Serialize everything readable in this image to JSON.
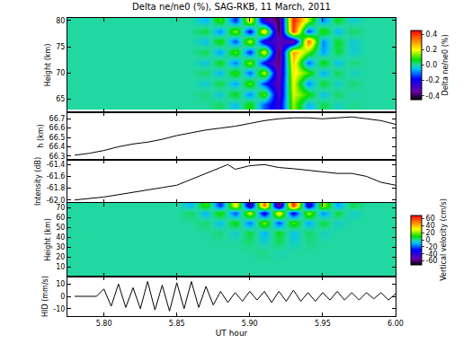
{
  "chart_data": [
    {
      "type": "heatmap",
      "title": "Delta ne/ne0 (%), SAG-RKB, 11 March, 2011",
      "y_label": "Height (km)",
      "x": [
        5.78,
        5.79,
        5.8,
        5.81,
        5.82,
        5.83,
        5.84,
        5.85,
        5.86,
        5.87,
        5.88,
        5.89,
        5.9,
        5.91,
        5.92,
        5.93,
        5.94,
        5.95,
        5.96,
        5.97,
        5.98,
        5.99,
        6.0
      ],
      "y": [
        64,
        66,
        68,
        70,
        72,
        74,
        76,
        78,
        80
      ],
      "cells": [
        [
          0,
          0,
          0,
          0,
          0,
          0,
          0,
          0,
          0,
          0,
          0.03,
          -0.05,
          0.08,
          -0.12,
          -0.25,
          0.15,
          -0.06,
          0.04,
          -0.02,
          0.01,
          0,
          0,
          0
        ],
        [
          0,
          0,
          0,
          0,
          0,
          0,
          0,
          0,
          0,
          0.02,
          -0.04,
          0.07,
          -0.1,
          0.12,
          -0.3,
          0.18,
          0.08,
          -0.05,
          0.03,
          -0.01,
          0,
          0,
          0
        ],
        [
          0,
          0,
          0,
          0,
          0,
          0,
          0,
          0,
          0,
          -0.03,
          0.05,
          -0.08,
          0.12,
          -0.15,
          -0.32,
          0.2,
          -0.1,
          0.06,
          -0.03,
          0.02,
          0,
          0,
          0
        ],
        [
          0,
          0,
          0,
          0,
          0,
          0,
          0,
          0,
          0,
          0.03,
          -0.06,
          0.1,
          -0.13,
          0.18,
          -0.35,
          0.22,
          0.1,
          -0.07,
          0.04,
          -0.02,
          0,
          0,
          0
        ],
        [
          0,
          0,
          0,
          0,
          0,
          0,
          0,
          0,
          0,
          -0.04,
          0.07,
          -0.11,
          0.15,
          -0.2,
          -0.38,
          0.25,
          -0.12,
          0.08,
          -0.05,
          0.02,
          0,
          0,
          0
        ],
        [
          0,
          0,
          0,
          0,
          0,
          0,
          0,
          0,
          0,
          0.04,
          -0.08,
          0.12,
          -0.17,
          0.22,
          -0.4,
          0.3,
          0.12,
          -0.08,
          0.05,
          -0.03,
          0,
          0,
          0
        ],
        [
          0,
          0,
          0,
          0,
          0,
          0,
          0,
          0,
          0,
          -0.05,
          0.09,
          -0.14,
          0.18,
          -0.25,
          -0.3,
          -0.35,
          0.35,
          -0.1,
          0.06,
          -0.03,
          0,
          0,
          0
        ],
        [
          0,
          0,
          0,
          0,
          0,
          0,
          0,
          0,
          0,
          0.05,
          -0.1,
          0.15,
          -0.2,
          0.26,
          -0.42,
          0.4,
          -0.15,
          0.1,
          -0.06,
          0.03,
          0,
          0,
          0
        ],
        [
          0,
          0,
          0,
          0,
          0,
          0,
          0,
          0,
          0,
          -0.06,
          0.1,
          -0.16,
          0.22,
          -0.28,
          -0.4,
          0.42,
          0.15,
          -0.1,
          0.06,
          -0.03,
          0,
          0,
          0
        ]
      ],
      "colorbar_title": "Delta ne/ne0 (%)",
      "colorbar_range": [
        -0.45,
        0.45
      ],
      "colorbar_ticks": [
        -0.4,
        -0.2,
        {
          "value": 0,
          "label": "0.0"
        },
        0.2,
        0.4
      ],
      "xlim": [
        5.775,
        6.0
      ],
      "xticks": [
        {
          "value": 5.8,
          "label": "5.80"
        },
        {
          "value": 5.85,
          "label": "5.85"
        },
        {
          "value": 5.9,
          "label": "5.90"
        },
        {
          "value": 5.95,
          "label": "5.95"
        },
        {
          "value": 6.0,
          "label": "6.00"
        }
      ],
      "ylim": [
        62.5,
        80.5
      ],
      "yticks": [
        65,
        70,
        75,
        80
      ],
      "tick_labels": "y"
    },
    {
      "type": "line",
      "y_label": "h (km)",
      "x": [
        5.78,
        5.79,
        5.8,
        5.81,
        5.82,
        5.83,
        5.84,
        5.85,
        5.86,
        5.87,
        5.88,
        5.89,
        5.9,
        5.91,
        5.92,
        5.93,
        5.94,
        5.95,
        5.96,
        5.97,
        5.98,
        5.99,
        6.0
      ],
      "values": [
        66.31,
        66.33,
        66.36,
        66.4,
        66.43,
        66.45,
        66.48,
        66.52,
        66.55,
        66.58,
        66.6,
        66.62,
        66.65,
        66.68,
        66.7,
        66.71,
        66.71,
        66.7,
        66.71,
        66.72,
        66.7,
        66.68,
        66.64
      ],
      "color": "#000000",
      "xlim": [
        5.775,
        6.0
      ],
      "xticks": [
        {
          "value": 5.8,
          "label": "5.80"
        },
        {
          "value": 5.85,
          "label": "5.85"
        },
        {
          "value": 5.9,
          "label": "5.90"
        },
        {
          "value": 5.95,
          "label": "5.95"
        },
        {
          "value": 6.0,
          "label": "6.00"
        }
      ],
      "ylim": [
        66.26,
        66.77
      ],
      "yticks": [
        66.3,
        66.4,
        66.5,
        66.6,
        66.7
      ],
      "tick_labels": "y"
    },
    {
      "type": "line",
      "y_label": "Intensity (dB)",
      "x": [
        5.78,
        5.79,
        5.8,
        5.81,
        5.82,
        5.83,
        5.84,
        5.85,
        5.86,
        5.87,
        5.88,
        5.885,
        5.89,
        5.9,
        5.91,
        5.92,
        5.93,
        5.94,
        5.95,
        5.96,
        5.97,
        5.98,
        5.99,
        6.0
      ],
      "values": [
        -62.0,
        -61.98,
        -61.95,
        -61.91,
        -61.87,
        -61.83,
        -61.79,
        -61.75,
        -61.65,
        -61.55,
        -61.45,
        -61.4,
        -61.48,
        -61.42,
        -61.4,
        -61.45,
        -61.47,
        -61.5,
        -61.53,
        -61.55,
        -61.55,
        -61.6,
        -61.7,
        -61.75
      ],
      "color": "#000000",
      "xlim": [
        5.775,
        6.0
      ],
      "xticks": [
        {
          "value": 5.8,
          "label": "5.80"
        },
        {
          "value": 5.85,
          "label": "5.85"
        },
        {
          "value": 5.9,
          "label": "5.90"
        },
        {
          "value": 5.95,
          "label": "5.95"
        },
        {
          "value": 6.0,
          "label": "6.00"
        }
      ],
      "ylim": [
        -62.05,
        -61.32
      ],
      "yticks": [
        {
          "value": -62.0,
          "label": "-62.0"
        },
        -61.8,
        -61.6,
        -61.4
      ],
      "tick_labels": "y"
    },
    {
      "type": "heatmap",
      "y_label": "Height (km)",
      "x": [
        5.78,
        5.79,
        5.8,
        5.81,
        5.82,
        5.83,
        5.84,
        5.85,
        5.86,
        5.87,
        5.88,
        5.89,
        5.9,
        5.91,
        5.92,
        5.93,
        5.94,
        5.95,
        5.96,
        5.97,
        5.98,
        5.99,
        6.0
      ],
      "y": [
        5,
        15,
        25,
        35,
        45,
        55,
        65,
        72
      ],
      "cells": [
        [
          0,
          0,
          0,
          0,
          0,
          0,
          0,
          0,
          0,
          0,
          0,
          0,
          0,
          0,
          0,
          0,
          0,
          0,
          0,
          0,
          0,
          0,
          0
        ],
        [
          0,
          0,
          0,
          0,
          0,
          0,
          0,
          0,
          0,
          0,
          0,
          0,
          0,
          0,
          0,
          0,
          0,
          0,
          0,
          0,
          0,
          0,
          0
        ],
        [
          0,
          0,
          0,
          0,
          0,
          0,
          0,
          0,
          0,
          0,
          0,
          0,
          0,
          2,
          -2,
          0,
          0,
          0,
          0,
          0,
          0,
          0,
          0
        ],
        [
          0,
          0,
          0,
          0,
          0,
          0,
          0,
          0,
          0,
          0,
          0,
          0,
          3,
          -4,
          5,
          -4,
          2,
          0,
          0,
          0,
          0,
          0,
          0
        ],
        [
          0,
          0,
          0,
          0,
          0,
          0,
          0,
          0,
          0,
          0,
          3,
          -5,
          8,
          -10,
          10,
          -8,
          5,
          -3,
          0,
          0,
          0,
          0,
          0
        ],
        [
          0,
          0,
          0,
          0,
          0,
          0,
          0,
          0,
          0,
          4,
          -8,
          12,
          -18,
          22,
          -22,
          18,
          -12,
          8,
          -4,
          0,
          0,
          0,
          0
        ],
        [
          0,
          0,
          0,
          0,
          0,
          0,
          0,
          0,
          5,
          -10,
          15,
          -22,
          30,
          -38,
          40,
          -35,
          25,
          -15,
          8,
          -4,
          0,
          0,
          0
        ],
        [
          0,
          0,
          0,
          0,
          0,
          0,
          0,
          0,
          -8,
          15,
          -25,
          35,
          -45,
          55,
          -60,
          65,
          -40,
          25,
          -12,
          6,
          0,
          0,
          0
        ]
      ],
      "colorbar_title": "Vertical velocity (cm/s)",
      "colorbar_range": [
        -70,
        70
      ],
      "colorbar_ticks": [
        -60,
        -40,
        -20,
        0,
        20,
        40,
        60
      ],
      "xlim": [
        5.775,
        6.0
      ],
      "xticks": [
        {
          "value": 5.8,
          "label": "5.80"
        },
        {
          "value": 5.85,
          "label": "5.85"
        },
        {
          "value": 5.9,
          "label": "5.90"
        },
        {
          "value": 5.95,
          "label": "5.95"
        },
        {
          "value": 6.0,
          "label": "6.00"
        }
      ],
      "ylim": [
        0,
        75
      ],
      "yticks": [
        10,
        20,
        30,
        40,
        50,
        60,
        70
      ],
      "tick_labels": "y"
    },
    {
      "type": "line",
      "x_label": "UT hour",
      "y_label": "HID (mm/s)",
      "x": [
        5.78,
        5.785,
        5.79,
        5.795,
        5.8,
        5.805,
        5.81,
        5.815,
        5.82,
        5.825,
        5.83,
        5.835,
        5.84,
        5.845,
        5.85,
        5.855,
        5.86,
        5.865,
        5.87,
        5.875,
        5.88,
        5.885,
        5.89,
        5.895,
        5.9,
        5.905,
        5.91,
        5.915,
        5.92,
        5.925,
        5.93,
        5.935,
        5.94,
        5.945,
        5.95,
        5.955,
        5.96,
        5.965,
        5.97,
        5.975,
        5.98,
        5.985,
        5.99,
        5.995,
        6.0
      ],
      "values": [
        0,
        0,
        0,
        0,
        6,
        -8,
        10,
        -9,
        7,
        -10,
        12,
        -11,
        9,
        -12,
        11,
        -10,
        12,
        -9,
        8,
        -7,
        4,
        -5,
        3,
        -4,
        4,
        -3,
        4,
        -5,
        4,
        -4,
        5,
        -4,
        3,
        -4,
        3,
        -3,
        4,
        -3,
        3,
        -3,
        3,
        -2,
        3,
        -3,
        2
      ],
      "color": "#000000",
      "xlim": [
        5.775,
        6.0
      ],
      "xticks": [
        {
          "value": 5.8,
          "label": "5.80"
        },
        {
          "value": 5.85,
          "label": "5.85"
        },
        {
          "value": 5.9,
          "label": "5.90"
        },
        {
          "value": 5.95,
          "label": "5.95"
        },
        {
          "value": 6.0,
          "label": "6.00"
        }
      ],
      "ylim": [
        -16,
        16
      ],
      "yticks": [
        -10,
        0,
        10
      ]
    }
  ]
}
